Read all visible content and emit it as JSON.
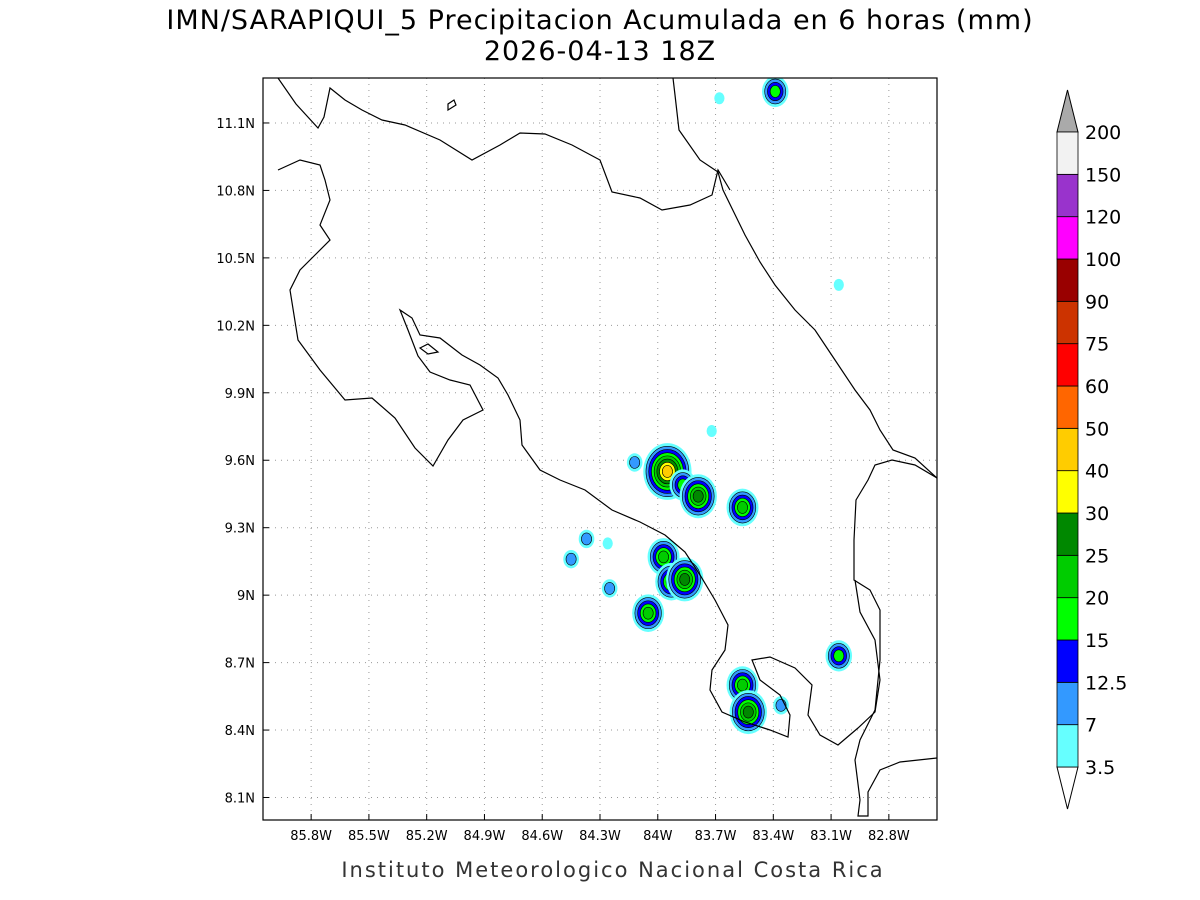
{
  "title": {
    "line1": "IMN/SARAPIQUI_5 Precipitacion Acumulada en 6 horas (mm)",
    "line2": "2026-04-13 18Z"
  },
  "credit": "Instituto Meteorologico Nacional Costa Rica",
  "map": {
    "lon_range": [
      -86.05,
      -82.55
    ],
    "lat_range": [
      8.0,
      11.3
    ],
    "lon_ticks": [
      {
        "value": -85.8,
        "label": "85.8W"
      },
      {
        "value": -85.5,
        "label": "85.5W"
      },
      {
        "value": -85.2,
        "label": "85.2W"
      },
      {
        "value": -84.9,
        "label": "84.9W"
      },
      {
        "value": -84.6,
        "label": "84.6W"
      },
      {
        "value": -84.3,
        "label": "84.3W"
      },
      {
        "value": -84.0,
        "label": "84W"
      },
      {
        "value": -83.7,
        "label": "83.7W"
      },
      {
        "value": -83.4,
        "label": "83.4W"
      },
      {
        "value": -83.1,
        "label": "83.1W"
      },
      {
        "value": -82.8,
        "label": "82.8W"
      }
    ],
    "lat_ticks": [
      {
        "value": 11.1,
        "label": "11.1N"
      },
      {
        "value": 10.8,
        "label": "10.8N"
      },
      {
        "value": 10.5,
        "label": "10.5N"
      },
      {
        "value": 10.2,
        "label": "10.2N"
      },
      {
        "value": 9.9,
        "label": "9.9N"
      },
      {
        "value": 9.6,
        "label": "9.6N"
      },
      {
        "value": 9.3,
        "label": "9.3N"
      },
      {
        "value": 9.0,
        "label": "9N"
      },
      {
        "value": 8.7,
        "label": "8.7N"
      },
      {
        "value": 8.4,
        "label": "8.4N"
      },
      {
        "value": 8.1,
        "label": "8.1N"
      }
    ],
    "grid": true
  },
  "colorbar": {
    "levels": [
      "3.5",
      "7",
      "12.5",
      "15",
      "20",
      "25",
      "30",
      "40",
      "50",
      "60",
      "75",
      "90",
      "100",
      "120",
      "150",
      "200"
    ],
    "colors": [
      "#ffffff",
      "#66ffff",
      "#3399ff",
      "#0000ff",
      "#00ff00",
      "#00cc00",
      "#008800",
      "#ffff00",
      "#ffcc00",
      "#ff6600",
      "#ff0000",
      "#cc3300",
      "#990000",
      "#ff00ff",
      "#9933cc",
      "#f2f2f2",
      "#aaaaaa"
    ]
  },
  "precip_cells": [
    {
      "lon": -84.12,
      "lat": 9.59,
      "max_level": "7"
    },
    {
      "lon": -83.95,
      "lat": 9.55,
      "max_level": "40"
    },
    {
      "lon": -83.87,
      "lat": 9.49,
      "max_level": "15"
    },
    {
      "lon": -83.79,
      "lat": 9.44,
      "max_level": "25"
    },
    {
      "lon": -83.56,
      "lat": 9.39,
      "max_level": "20"
    },
    {
      "lon": -83.72,
      "lat": 9.73,
      "max_level": "3.5"
    },
    {
      "lon": -84.37,
      "lat": 9.25,
      "max_level": "7"
    },
    {
      "lon": -84.45,
      "lat": 9.16,
      "max_level": "7"
    },
    {
      "lon": -84.26,
      "lat": 9.23,
      "max_level": "3.5"
    },
    {
      "lon": -83.97,
      "lat": 9.17,
      "max_level": "20"
    },
    {
      "lon": -83.93,
      "lat": 9.06,
      "max_level": "20"
    },
    {
      "lon": -83.86,
      "lat": 9.07,
      "max_level": "25"
    },
    {
      "lon": -84.25,
      "lat": 9.03,
      "max_level": "7"
    },
    {
      "lon": -84.05,
      "lat": 8.92,
      "max_level": "20"
    },
    {
      "lon": -83.56,
      "lat": 8.6,
      "max_level": "20"
    },
    {
      "lon": -83.53,
      "lat": 8.48,
      "max_level": "25"
    },
    {
      "lon": -83.06,
      "lat": 8.73,
      "max_level": "15"
    },
    {
      "lon": -83.36,
      "lat": 8.51,
      "max_level": "7"
    },
    {
      "lon": -83.39,
      "lat": 11.24,
      "max_level": "15"
    },
    {
      "lon": -83.68,
      "lat": 11.21,
      "max_level": "3.5"
    },
    {
      "lon": -83.06,
      "lat": 10.38,
      "max_level": "3.5"
    }
  ]
}
